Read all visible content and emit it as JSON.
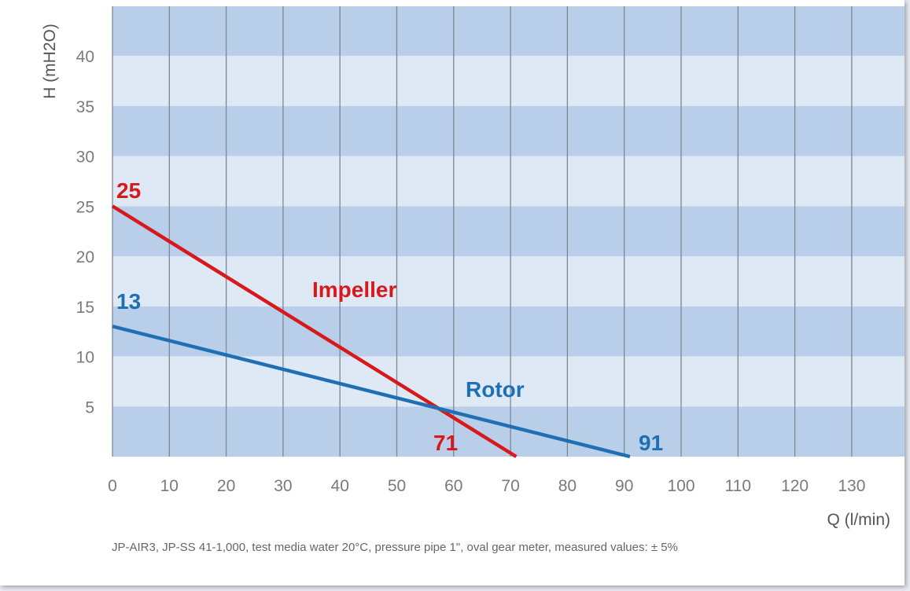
{
  "chart_data": {
    "type": "line",
    "xlabel": "Q (l/min)",
    "ylabel": "H (mH2O)",
    "xlim": [
      0,
      136
    ],
    "ylim": [
      0,
      45
    ],
    "x_ticks": [
      0,
      10,
      20,
      30,
      40,
      50,
      60,
      70,
      80,
      90,
      100,
      110,
      120,
      130
    ],
    "y_ticks": [
      5,
      10,
      15,
      20,
      25,
      30,
      35,
      40
    ],
    "grid": "alternating horizontal bands, vertical lines",
    "series": [
      {
        "name": "Impeller",
        "color": "#d7191c",
        "points": [
          [
            0,
            25
          ],
          [
            71,
            0
          ]
        ],
        "start_label": "25",
        "end_label": "71"
      },
      {
        "name": "Rotor",
        "color": "#1f6fb4",
        "points": [
          [
            0,
            13
          ],
          [
            91,
            0
          ]
        ],
        "start_label": "13",
        "end_label": "91"
      }
    ],
    "colors": {
      "band_dark": "#b9cfe9",
      "band_light": "#dfe9f6",
      "grid_line": "#7d8792"
    }
  },
  "footnote": "JP-AIR3, JP-SS 41-1,000, test media water 20°C, pressure pipe 1\", oval gear meter, measured values: ± 5%"
}
